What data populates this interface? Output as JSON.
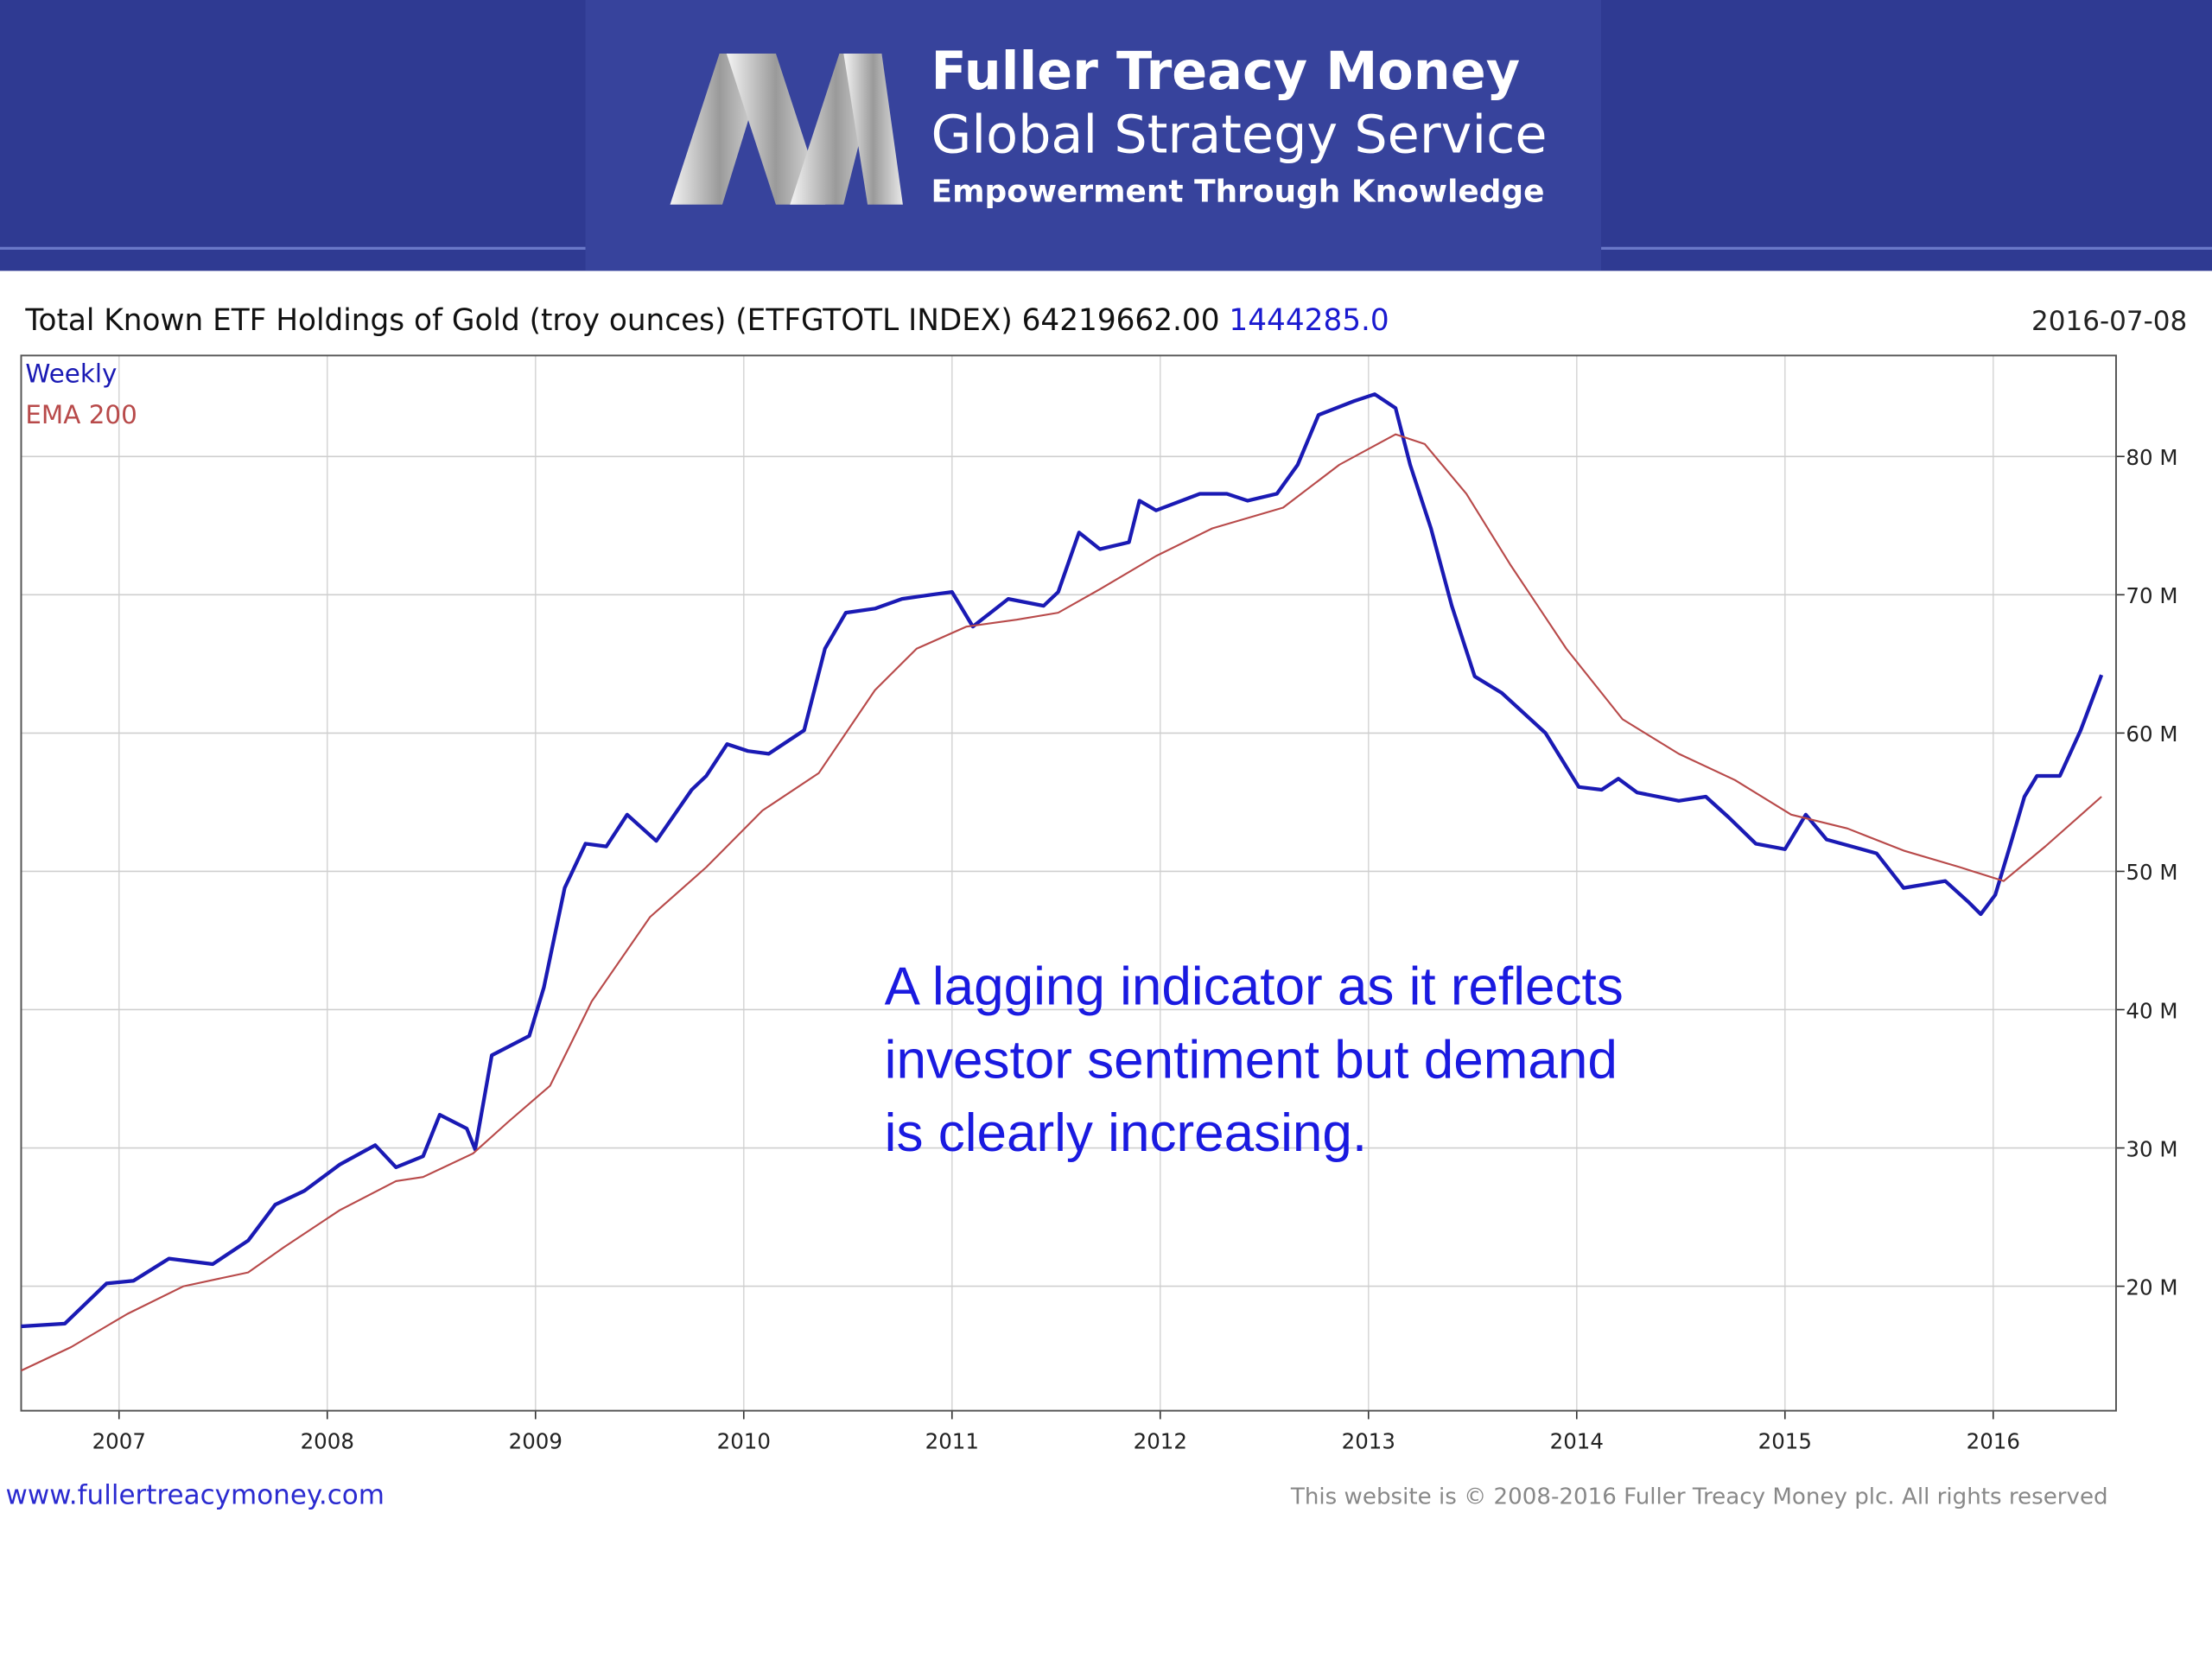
{
  "header": {
    "brand": "Fuller Treacy Money",
    "service": "Global Strategy Service",
    "tagline": "Empowerment Through Knowledge"
  },
  "footer": {
    "site": "www.fullertreacymoney.com",
    "copyright": "This website is © 2008-2016 Fuller Treacy Money plc. All rights reserved"
  },
  "chart_data": {
    "type": "line",
    "title": "Total Known ETF Holdings of Gold (troy ounces) (ETFGTOTL INDEX)",
    "last_value": "64219662.00",
    "change": "1444285.0",
    "date": "2016-07-08",
    "annotation": [
      "A lagging indicator as it reflects",
      "investor sentiment but demand",
      "is clearly increasing."
    ],
    "xlim": [
      2006.53,
      2016.59
    ],
    "xticks": [
      2007,
      2008,
      2009,
      2010,
      2011,
      2012,
      2013,
      2014,
      2015,
      2016
    ],
    "ylim": [
      11,
      87.3
    ],
    "yticks": [
      {
        "value": 20,
        "label": "20 M"
      },
      {
        "value": 30,
        "label": "30 M"
      },
      {
        "value": 40,
        "label": "40 M"
      },
      {
        "value": 50,
        "label": "50 M"
      },
      {
        "value": 60,
        "label": "60 M"
      },
      {
        "value": 70,
        "label": "70 M"
      },
      {
        "value": 80,
        "label": "80 M"
      }
    ],
    "grid": true,
    "series": [
      {
        "name": "Weekly",
        "color": "#1a1ab4",
        "x": [
          2006.53,
          2006.74,
          2006.94,
          2007.07,
          2007.24,
          2007.45,
          2007.62,
          2007.75,
          2007.89,
          2008.06,
          2008.23,
          2008.33,
          2008.46,
          2008.54,
          2008.67,
          2008.71,
          2008.79,
          2008.97,
          2009.04,
          2009.14,
          2009.24,
          2009.34,
          2009.44,
          2009.58,
          2009.75,
          2009.82,
          2009.92,
          2010.02,
          2010.12,
          2010.29,
          2010.39,
          2010.49,
          2010.63,
          2010.76,
          2010.9,
          2011.0,
          2011.1,
          2011.27,
          2011.44,
          2011.51,
          2011.61,
          2011.71,
          2011.85,
          2011.9,
          2011.98,
          2012.19,
          2012.32,
          2012.42,
          2012.56,
          2012.66,
          2012.76,
          2012.93,
          2013.03,
          2013.13,
          2013.2,
          2013.3,
          2013.4,
          2013.51,
          2013.64,
          2013.85,
          2014.01,
          2014.12,
          2014.2,
          2014.29,
          2014.49,
          2014.62,
          2014.73,
          2014.86,
          2015.0,
          2015.1,
          2015.2,
          2015.44,
          2015.57,
          2015.77,
          2015.88,
          2015.94,
          2016.01,
          2016.08,
          2016.15,
          2016.21,
          2016.32,
          2016.42,
          2016.52
        ],
        "values": [
          17.1,
          17.3,
          20.2,
          20.4,
          22.0,
          21.6,
          23.3,
          25.9,
          26.9,
          28.8,
          30.2,
          28.6,
          29.4,
          32.4,
          31.4,
          29.9,
          36.7,
          38.1,
          41.6,
          48.8,
          52.0,
          51.8,
          54.1,
          52.2,
          55.9,
          56.9,
          59.2,
          58.7,
          58.5,
          60.2,
          66.1,
          68.7,
          69.0,
          69.7,
          70.0,
          70.2,
          67.7,
          69.7,
          69.2,
          70.2,
          74.5,
          73.3,
          73.8,
          76.8,
          76.1,
          77.3,
          77.3,
          76.8,
          77.3,
          79.4,
          83.0,
          84.0,
          84.5,
          83.5,
          79.4,
          74.8,
          69.2,
          64.1,
          62.9,
          60.0,
          56.1,
          55.9,
          56.7,
          55.7,
          55.1,
          55.4,
          53.9,
          52.0,
          51.6,
          54.1,
          52.3,
          51.3,
          48.8,
          49.3,
          47.8,
          46.9,
          48.3,
          51.8,
          55.4,
          56.9,
          56.9,
          60.2,
          64.2
        ]
      },
      {
        "name": "EMA 200",
        "color": "#b84a4a",
        "x": [
          2006.53,
          2006.77,
          2007.04,
          2007.31,
          2007.62,
          2007.79,
          2008.06,
          2008.33,
          2008.46,
          2008.7,
          2008.87,
          2009.07,
          2009.27,
          2009.55,
          2009.82,
          2010.09,
          2010.36,
          2010.63,
          2010.83,
          2011.07,
          2011.31,
          2011.51,
          2011.71,
          2011.98,
          2012.25,
          2012.59,
          2012.86,
          2013.13,
          2013.27,
          2013.47,
          2013.68,
          2013.95,
          2014.22,
          2014.49,
          2014.76,
          2015.03,
          2015.3,
          2015.57,
          2015.84,
          2016.05,
          2016.25,
          2016.52
        ],
        "values": [
          13.9,
          15.6,
          18.0,
          20.0,
          21.0,
          22.8,
          25.5,
          27.6,
          27.9,
          29.6,
          31.9,
          34.5,
          40.6,
          46.7,
          50.3,
          54.4,
          57.1,
          63.1,
          66.1,
          67.7,
          68.2,
          68.7,
          70.4,
          72.8,
          74.8,
          76.3,
          79.4,
          81.6,
          80.9,
          77.3,
          72.2,
          66.1,
          61.0,
          58.5,
          56.6,
          54.1,
          53.1,
          51.5,
          50.3,
          49.3,
          51.8,
          55.4
        ]
      }
    ]
  }
}
